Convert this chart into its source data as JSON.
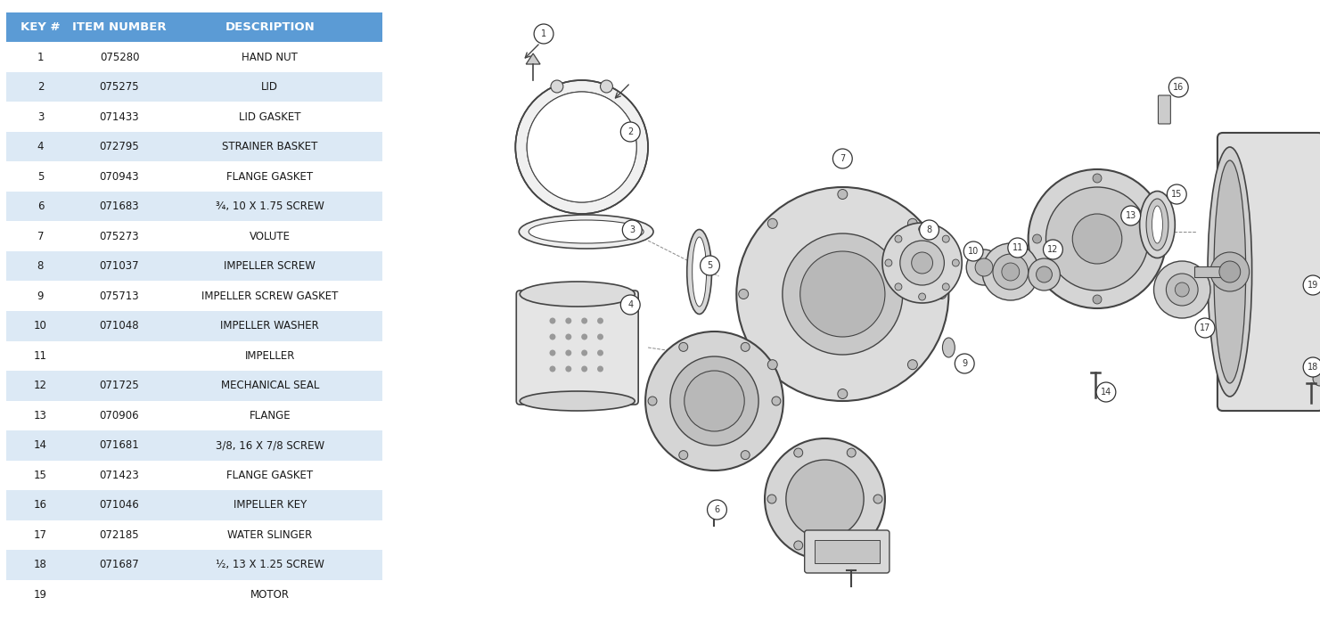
{
  "table_headers": [
    "KEY #",
    "ITEM NUMBER",
    "DESCRIPTION"
  ],
  "table_rows": [
    [
      "1",
      "075280",
      "HAND NUT"
    ],
    [
      "2",
      "075275",
      "LID"
    ],
    [
      "3",
      "071433",
      "LID GASKET"
    ],
    [
      "4",
      "072795",
      "STRAINER BASKET"
    ],
    [
      "5",
      "070943",
      "FLANGE GASKET"
    ],
    [
      "6",
      "071683",
      "¾, 10 X 1.75 SCREW"
    ],
    [
      "7",
      "075273",
      "VOLUTE"
    ],
    [
      "8",
      "071037",
      "IMPELLER SCREW"
    ],
    [
      "9",
      "075713",
      "IMPELLER SCREW GASKET"
    ],
    [
      "10",
      "071048",
      "IMPELLER WASHER"
    ],
    [
      "11",
      "",
      "IMPELLER"
    ],
    [
      "12",
      "071725",
      "MECHANICAL SEAL"
    ],
    [
      "13",
      "070906",
      "FLANGE"
    ],
    [
      "14",
      "071681",
      "3/8, 16 X 7/8 SCREW"
    ],
    [
      "15",
      "071423",
      "FLANGE GASKET"
    ],
    [
      "16",
      "071046",
      "IMPELLER KEY"
    ],
    [
      "17",
      "072185",
      "WATER SLINGER"
    ],
    [
      "18",
      "071687",
      "½, 13 X 1.25 SCREW"
    ],
    [
      "19",
      "",
      "MOTOR"
    ]
  ],
  "header_bg": "#5b9bd5",
  "header_text": "#ffffff",
  "row_bg_even": "#dce9f5",
  "row_bg_odd": "#ffffff",
  "table_text_color": "#1a1a1a",
  "header_fontsize": 9.5,
  "row_fontsize": 8.5,
  "fig_width": 14.81,
  "fig_height": 6.98
}
